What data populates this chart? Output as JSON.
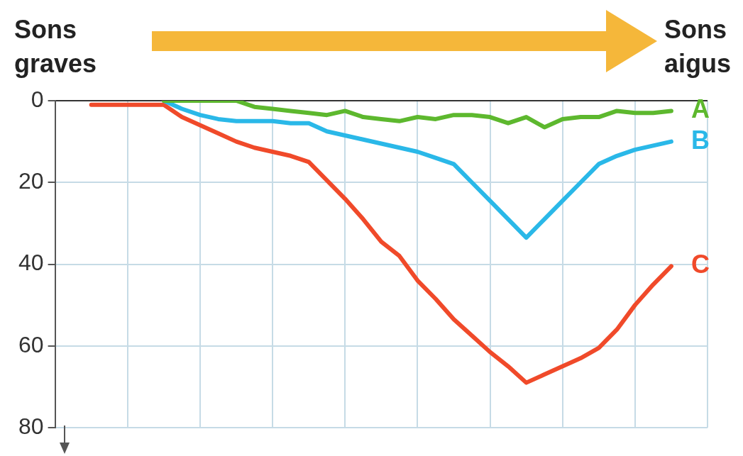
{
  "chart_data": {
    "type": "line",
    "annotations": [
      "Sons graves",
      "Sons aigus"
    ],
    "categories": [
      null,
      null,
      null,
      null,
      null,
      null,
      null,
      null,
      null,
      null,
      null,
      null,
      null,
      null,
      null,
      null,
      null,
      null,
      null,
      null,
      null,
      null,
      null,
      null,
      null,
      null,
      null,
      null,
      null,
      null,
      null,
      null,
      null,
      null,
      null,
      null,
      null
    ],
    "ylim": [
      80,
      0
    ],
    "yticks": [
      0,
      20,
      40,
      60,
      80
    ],
    "grid": true,
    "legend": false,
    "tick_labels": "y",
    "marker": "none",
    "line_style": "solid",
    "series": [
      {
        "name": "A",
        "color": "#5db82e",
        "values": [
          null,
          null,
          null,
          null,
          null,
          null,
          0,
          0,
          0,
          0,
          0,
          1.5,
          2,
          2.5,
          3,
          3.5,
          2.5,
          4,
          4.5,
          5,
          4,
          4.5,
          3.5,
          3.5,
          4,
          5.5,
          4,
          6.5,
          4.5,
          4,
          4,
          2.5,
          3,
          3,
          2.5,
          null,
          null
        ]
      },
      {
        "name": "B",
        "color": "#2ab8e8",
        "values": [
          null,
          null,
          null,
          null,
          null,
          null,
          0,
          2,
          3.5,
          4.5,
          5,
          5,
          5,
          5.5,
          5.5,
          7.5,
          8.5,
          9.5,
          10.5,
          11.5,
          12.5,
          14,
          15.5,
          20,
          24.5,
          29,
          33.5,
          29,
          24.5,
          20,
          15.5,
          13.5,
          12,
          11,
          10,
          null,
          null
        ]
      },
      {
        "name": "C",
        "color": "#f04a2a",
        "values": [
          null,
          null,
          1,
          1,
          1,
          1,
          1,
          4,
          6,
          8,
          10,
          11.5,
          12.5,
          13.5,
          15,
          19.5,
          24,
          29,
          34.5,
          38,
          44,
          48.5,
          53.5,
          57.5,
          61.5,
          65,
          69,
          67,
          65,
          63,
          60.5,
          56,
          50,
          45,
          40.5,
          null,
          null
        ]
      }
    ]
  }
}
